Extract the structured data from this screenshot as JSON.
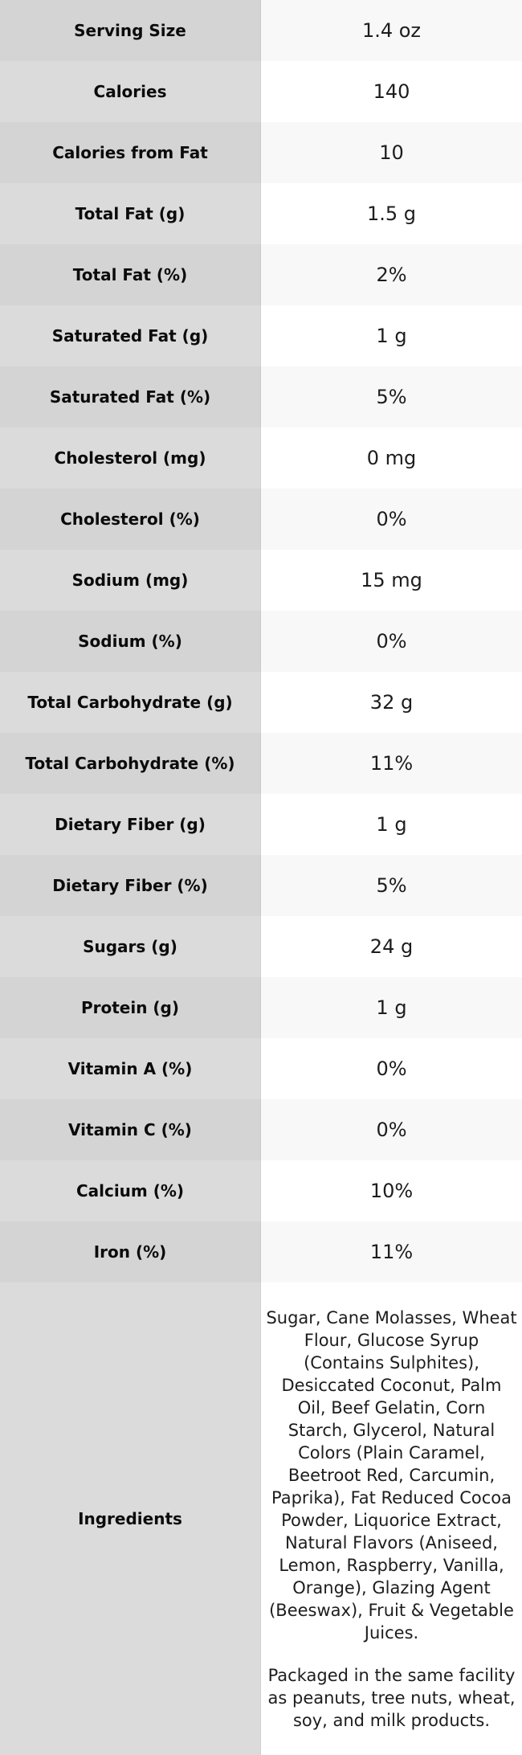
{
  "chart_data": {
    "type": "table",
    "columns": [
      "label",
      "value"
    ],
    "rows": [
      {
        "label": "Serving Size",
        "value": "1.4 oz"
      },
      {
        "label": "Calories",
        "value": "140"
      },
      {
        "label": "Calories from Fat",
        "value": "10"
      },
      {
        "label": "Total Fat (g)",
        "value": "1.5 g"
      },
      {
        "label": "Total Fat (%)",
        "value": "2%"
      },
      {
        "label": "Saturated Fat (g)",
        "value": "1 g"
      },
      {
        "label": "Saturated Fat (%)",
        "value": "5%"
      },
      {
        "label": "Cholesterol (mg)",
        "value": "0 mg"
      },
      {
        "label": "Cholesterol (%)",
        "value": "0%"
      },
      {
        "label": "Sodium (mg)",
        "value": "15 mg"
      },
      {
        "label": "Sodium (%)",
        "value": "0%"
      },
      {
        "label": "Total Carbohydrate (g)",
        "value": "32 g"
      },
      {
        "label": "Total Carbohydrate (%)",
        "value": "11%"
      },
      {
        "label": "Dietary Fiber (g)",
        "value": "1 g"
      },
      {
        "label": "Dietary Fiber (%)",
        "value": "5%"
      },
      {
        "label": "Sugars (g)",
        "value": "24 g"
      },
      {
        "label": "Protein (g)",
        "value": "1 g"
      },
      {
        "label": "Vitamin A (%)",
        "value": "0%"
      },
      {
        "label": "Vitamin C (%)",
        "value": "0%"
      },
      {
        "label": "Calcium (%)",
        "value": "10%"
      },
      {
        "label": "Iron (%)",
        "value": "11%"
      }
    ],
    "ingredients_row": {
      "label": "Ingredients",
      "paragraphs": [
        "Sugar, Cane Molasses, Wheat Flour, Glucose Syrup (Contains Sulphites), Desiccated Coconut, Palm Oil, Beef Gelatin, Corn Starch, Glycerol, Natural Colors (Plain Caramel, Beetroot Red, Carcumin, Paprika), Fat Reduced Cocoa Powder, Liquorice Extract, Natural Flavors (Aniseed, Lemon, Raspberry, Vanilla, Orange), Glazing Agent (Beeswax), Fruit & Vegetable Juices.",
        "Packaged in the same facility as peanuts, tree nuts, wheat, soy, and milk products."
      ]
    }
  },
  "colors": {
    "label_odd_bg": "#d3d4d3",
    "label_even_bg": "#dadbda",
    "value_odd_bg": "#f8f8f8",
    "value_even_bg": "#ffffff",
    "label_text": "#0b0b0b",
    "value_text": "#1d1d1d"
  }
}
